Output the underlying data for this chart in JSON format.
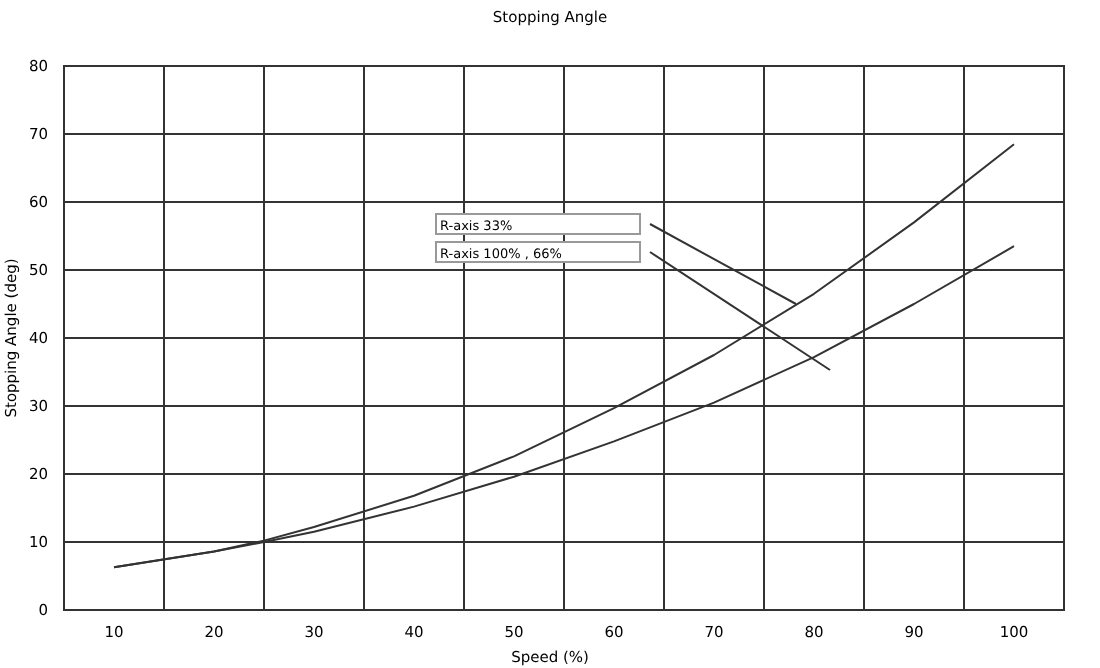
{
  "chart_data": {
    "type": "line",
    "title": "Stopping Angle",
    "xlabel": "Speed (%)",
    "ylabel": "Stopping Angle (deg)",
    "x": [
      10,
      20,
      25,
      30,
      40,
      50,
      60,
      70,
      80,
      90,
      100
    ],
    "series": [
      {
        "color": "#333333",
        "values": [
          6.3,
          8.6,
          10.2,
          12.2,
          16.8,
          22.6,
          29.7,
          37.5,
          46.5,
          57,
          68.5
        ]
      },
      {
        "color": "#333333",
        "values": [
          6.3,
          8.6,
          10,
          11.5,
          15.2,
          19.6,
          24.8,
          30.5,
          37.2,
          45,
          53.5
        ]
      }
    ],
    "xlim": [
      5,
      105
    ],
    "xticks": [
      10,
      {
        "value": 15,
        "label": null
      },
      20,
      {
        "value": 25,
        "label": null
      },
      30,
      {
        "value": 35,
        "label": null
      },
      40,
      {
        "value": 45,
        "label": null
      },
      50,
      {
        "value": 55,
        "label": null
      },
      60,
      {
        "value": 65,
        "label": null
      },
      70,
      {
        "value": 75,
        "label": null
      },
      80,
      {
        "value": 85,
        "label": null
      },
      90,
      {
        "value": 95,
        "label": null
      },
      100
    ],
    "ylim": [
      0,
      80
    ],
    "yticks": [
      0,
      10,
      20,
      30,
      40,
      50,
      60,
      70,
      80
    ],
    "grid": true,
    "marker": "none",
    "line_style": "solid",
    "annotations": [
      "R-axis 33%",
      "R-axis 100% , 66%"
    ]
  }
}
